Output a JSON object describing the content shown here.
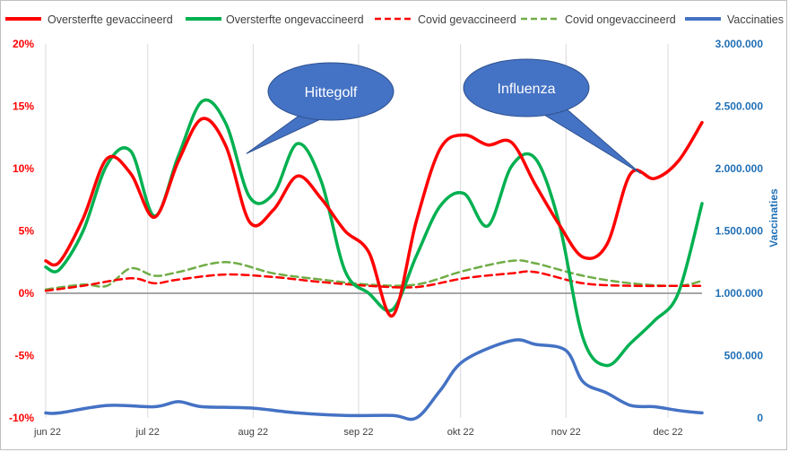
{
  "chart_data": {
    "type": "line",
    "title": "",
    "xlabel": "",
    "ylabel": "",
    "y2label": "Vaccinaties",
    "x_ticks": [
      "jun 22",
      "jul 22",
      "aug 22",
      "sep 22",
      "okt 22",
      "nov 22",
      "dec 22"
    ],
    "x_range": [
      "2022-06-01",
      "2022-12-11"
    ],
    "ylim": [
      -10,
      20
    ],
    "y_ticks": [
      "-10%",
      "-5%",
      "0%",
      "5%",
      "10%",
      "15%",
      "20%"
    ],
    "y2lim": [
      0,
      3000000
    ],
    "y2_ticks": [
      "0",
      "500.000",
      "1.000.000",
      "1.500.000",
      "2.000.000",
      "2.500.000",
      "3.000.000"
    ],
    "grid": "vertical",
    "legend_position": "top",
    "series": [
      {
        "name": "Oversterfte gevaccineerd",
        "axis": "left",
        "style": "solid",
        "color": "#ff0000",
        "x": [
          "2022-06-01",
          "2022-06-05",
          "2022-06-12",
          "2022-06-19",
          "2022-06-26",
          "2022-07-03",
          "2022-07-10",
          "2022-07-17",
          "2022-07-24",
          "2022-07-31",
          "2022-08-07",
          "2022-08-14",
          "2022-08-21",
          "2022-08-28",
          "2022-09-04",
          "2022-09-11",
          "2022-09-18",
          "2022-09-25",
          "2022-10-02",
          "2022-10-09",
          "2022-10-16",
          "2022-10-23",
          "2022-10-30",
          "2022-11-06",
          "2022-11-13",
          "2022-11-20",
          "2022-11-27",
          "2022-12-04",
          "2022-12-11"
        ],
        "values": [
          2.6,
          2.5,
          6.0,
          10.8,
          9.6,
          6.1,
          10.6,
          14.0,
          11.8,
          5.7,
          6.7,
          9.4,
          7.6,
          5.0,
          3.3,
          -1.8,
          5.8,
          11.6,
          12.7,
          11.9,
          12.1,
          8.7,
          5.5,
          2.9,
          3.9,
          9.6,
          9.2,
          10.6,
          13.7
        ]
      },
      {
        "name": "Oversterfte ongevaccineerd",
        "axis": "left",
        "style": "solid",
        "color": "#00b050",
        "x": [
          "2022-06-01",
          "2022-06-05",
          "2022-06-12",
          "2022-06-19",
          "2022-06-26",
          "2022-07-03",
          "2022-07-10",
          "2022-07-17",
          "2022-07-24",
          "2022-07-31",
          "2022-08-07",
          "2022-08-14",
          "2022-08-21",
          "2022-08-28",
          "2022-09-04",
          "2022-09-11",
          "2022-09-18",
          "2022-09-25",
          "2022-10-02",
          "2022-10-09",
          "2022-10-16",
          "2022-10-23",
          "2022-10-30",
          "2022-11-06",
          "2022-11-13",
          "2022-11-20",
          "2022-11-27",
          "2022-12-04",
          "2022-12-11"
        ],
        "values": [
          2.1,
          1.9,
          5.0,
          10.3,
          11.4,
          6.2,
          11.0,
          15.4,
          13.6,
          7.7,
          8.0,
          12.0,
          9.0,
          1.8,
          0.0,
          -1.3,
          3.0,
          7.0,
          8.0,
          5.4,
          10.2,
          10.8,
          5.6,
          -3.6,
          -5.8,
          -4.0,
          -2.2,
          0.0,
          7.2
        ]
      },
      {
        "name": "Covid gevaccineerd",
        "axis": "left",
        "style": "dashed",
        "color": "#ff0000",
        "x": [
          "2022-06-01",
          "2022-06-12",
          "2022-06-26",
          "2022-07-03",
          "2022-07-10",
          "2022-07-24",
          "2022-08-07",
          "2022-08-21",
          "2022-09-04",
          "2022-09-18",
          "2022-10-02",
          "2022-10-16",
          "2022-10-23",
          "2022-11-06",
          "2022-11-20",
          "2022-12-04",
          "2022-12-11"
        ],
        "values": [
          0.2,
          0.6,
          1.2,
          0.8,
          1.1,
          1.5,
          1.3,
          0.9,
          0.6,
          0.5,
          1.2,
          1.6,
          1.7,
          0.8,
          0.6,
          0.6,
          0.6
        ]
      },
      {
        "name": "Covid ongevaccineerd",
        "axis": "left",
        "style": "dashed",
        "color": "#70ad47",
        "x": [
          "2022-06-01",
          "2022-06-12",
          "2022-06-19",
          "2022-06-26",
          "2022-07-03",
          "2022-07-10",
          "2022-07-24",
          "2022-08-07",
          "2022-08-21",
          "2022-09-04",
          "2022-09-18",
          "2022-10-02",
          "2022-10-16",
          "2022-10-23",
          "2022-11-06",
          "2022-11-20",
          "2022-12-04",
          "2022-12-11"
        ],
        "values": [
          0.3,
          0.7,
          0.6,
          2.0,
          1.4,
          1.7,
          2.5,
          1.6,
          1.1,
          0.7,
          0.7,
          1.8,
          2.6,
          2.4,
          1.4,
          0.8,
          0.6,
          1.0
        ]
      },
      {
        "name": "Vaccinaties",
        "axis": "right",
        "style": "solid",
        "color": "#4472c4",
        "x": [
          "2022-06-01",
          "2022-06-05",
          "2022-06-19",
          "2022-07-03",
          "2022-07-10",
          "2022-07-17",
          "2022-07-31",
          "2022-08-14",
          "2022-08-28",
          "2022-09-11",
          "2022-09-18",
          "2022-09-25",
          "2022-10-02",
          "2022-10-16",
          "2022-10-23",
          "2022-11-01",
          "2022-11-06",
          "2022-11-13",
          "2022-11-20",
          "2022-11-27",
          "2022-12-04",
          "2022-12-11"
        ],
        "values": [
          40000,
          40000,
          100000,
          90000,
          130000,
          90000,
          80000,
          40000,
          20000,
          20000,
          0,
          220000,
          460000,
          620000,
          590000,
          540000,
          290000,
          200000,
          100000,
          90000,
          60000,
          40000
        ]
      }
    ],
    "annotations": [
      {
        "text": "Hittegolf",
        "points_to": {
          "x": "2022-07-30",
          "y": 11.2
        }
      },
      {
        "text": "Influenza",
        "points_to": {
          "x": "2022-11-23",
          "y": 9.6
        }
      }
    ]
  }
}
